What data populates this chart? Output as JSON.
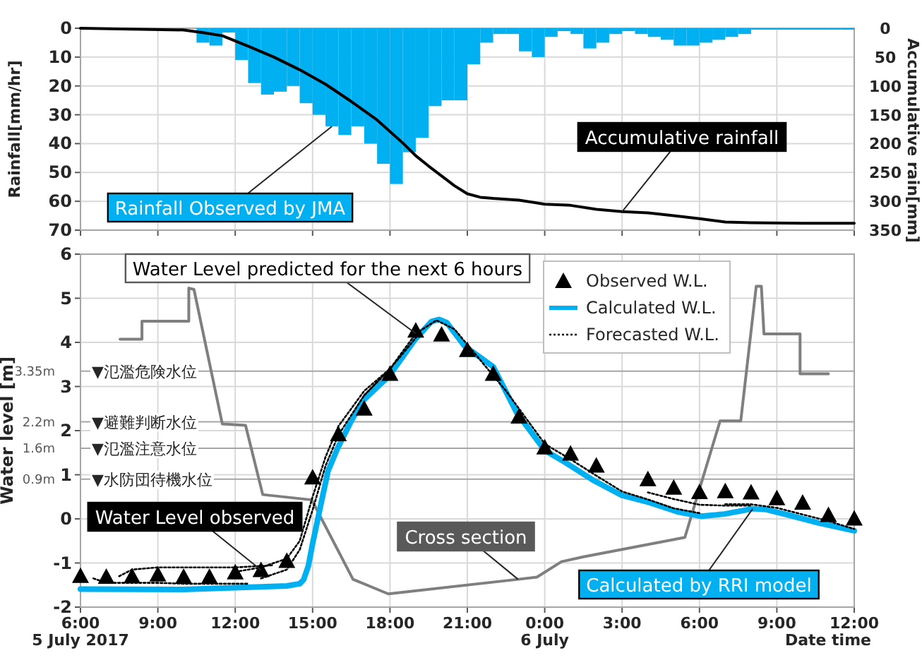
{
  "chart_data": [
    {
      "type": "bar",
      "xlim": [
        "2017-07-05T06:00",
        "2017-07-06T12:00"
      ],
      "xticks": [
        "2017-07-05T06:00",
        "2017-07-05T09:00",
        "2017-07-05T12:00",
        "2017-07-05T15:00",
        "2017-07-05T18:00",
        "2017-07-05T21:00",
        "2017-07-06T00:00",
        "2017-07-06T03:00",
        "2017-07-06T06:00",
        "2017-07-06T09:00",
        "2017-07-06T12:00"
      ],
      "ylim": [
        70,
        0
      ],
      "yticks": [
        0,
        10,
        20,
        30,
        40,
        50,
        60,
        70
      ],
      "y2lim": [
        350,
        0
      ],
      "y2ticks": [
        0,
        50,
        100,
        150,
        200,
        250,
        300,
        350
      ],
      "grid": true,
      "tick_labels": "y",
      "ylabel": "Rainfall[mm/hr]",
      "y2label": "Accumulative rain[mm]",
      "x": [
        "2017-07-05T10:45",
        "2017-07-05T11:15",
        "2017-07-05T11:45",
        "2017-07-05T12:15",
        "2017-07-05T12:45",
        "2017-07-05T13:15",
        "2017-07-05T13:45",
        "2017-07-05T14:15",
        "2017-07-05T14:45",
        "2017-07-05T15:15",
        "2017-07-05T15:45",
        "2017-07-05T16:15",
        "2017-07-05T16:45",
        "2017-07-05T17:15",
        "2017-07-05T17:45",
        "2017-07-05T18:15",
        "2017-07-05T18:45",
        "2017-07-05T19:15",
        "2017-07-05T19:45",
        "2017-07-05T20:15",
        "2017-07-05T20:45",
        "2017-07-05T21:15",
        "2017-07-05T21:45",
        "2017-07-05T22:15",
        "2017-07-05T22:45",
        "2017-07-05T23:15",
        "2017-07-05T23:45",
        "2017-07-06T00:15",
        "2017-07-06T00:45",
        "2017-07-06T01:15",
        "2017-07-06T01:45",
        "2017-07-06T02:15",
        "2017-07-06T02:45",
        "2017-07-06T03:15",
        "2017-07-06T03:45",
        "2017-07-06T04:15",
        "2017-07-06T04:45",
        "2017-07-06T05:15",
        "2017-07-06T05:45",
        "2017-07-06T06:15",
        "2017-07-06T06:45",
        "2017-07-06T07:15",
        "2017-07-06T07:45",
        "2017-07-06T08:15",
        "2017-07-06T08:45",
        "2017-07-06T09:15",
        "2017-07-06T09:45",
        "2017-07-06T10:15",
        "2017-07-06T10:45",
        "2017-07-06T11:15",
        "2017-07-06T11:45"
      ],
      "series": [
        {
          "color": "#00b0f0",
          "values": [
            5,
            6,
            1.5,
            11,
            19,
            23,
            22,
            20,
            26,
            30,
            34,
            37,
            34,
            40,
            47,
            54,
            43,
            38,
            27,
            25,
            25,
            12.5,
            5,
            2,
            2,
            8,
            10,
            3,
            1,
            2,
            7,
            5,
            2,
            1,
            2,
            3,
            4,
            6,
            6,
            5,
            4,
            3,
            2,
            0.5,
            0.5,
            0.5,
            0.5,
            0.5,
            0.5,
            0.5,
            0.5
          ]
        },
        {
          "type": "line",
          "axis": "y2",
          "color": "#000000",
          "x": [
            "2017-07-05T06:00",
            "2017-07-05T10:00",
            "2017-07-05T10:48",
            "2017-07-05T11:30",
            "2017-07-05T12:30",
            "2017-07-05T13:30",
            "2017-07-05T14:30",
            "2017-07-05T15:30",
            "2017-07-05T16:30",
            "2017-07-05T17:30",
            "2017-07-05T18:30",
            "2017-07-05T19:00",
            "2017-07-05T19:30",
            "2017-07-05T20:30",
            "2017-07-05T21:00",
            "2017-07-05T21:30",
            "2017-07-05T22:00",
            "2017-07-05T23:00",
            "2017-07-06T00:00",
            "2017-07-06T01:00",
            "2017-07-06T02:00",
            "2017-07-06T03:00",
            "2017-07-06T04:00",
            "2017-07-06T05:00",
            "2017-07-06T06:00",
            "2017-07-06T07:00",
            "2017-07-06T08:00",
            "2017-07-06T10:00",
            "2017-07-06T12:00"
          ],
          "values": [
            0,
            3,
            8,
            13,
            31,
            50,
            72,
            97,
            127,
            159,
            199,
            221,
            239,
            273,
            287,
            293,
            295,
            298,
            305,
            307,
            314,
            318,
            320,
            325,
            330,
            336,
            337,
            338,
            338
          ]
        }
      ],
      "annotations": [
        {
          "text": "Rainfall Observed by JMA",
          "x": "2017-07-05T15:45",
          "y": 34
        },
        {
          "text": "Accumulative rainfall",
          "x": "2017-07-06T03:00",
          "y": 63.6
        }
      ]
    },
    {
      "type": "line",
      "xlim": [
        "2017-07-05T06:00",
        "2017-07-06T12:00"
      ],
      "xticks": [
        {
          "value": "2017-07-05T06:00",
          "label": "6:00\n5 July 2017"
        },
        {
          "value": "2017-07-05T09:00",
          "label": "9:00"
        },
        {
          "value": "2017-07-05T12:00",
          "label": "12:00"
        },
        {
          "value": "2017-07-05T15:00",
          "label": "15:00"
        },
        {
          "value": "2017-07-05T18:00",
          "label": "18:00"
        },
        {
          "value": "2017-07-05T21:00",
          "label": "21:00"
        },
        {
          "value": "2017-07-06T00:00",
          "label": "0:00\n6 July"
        },
        {
          "value": "2017-07-06T03:00",
          "label": "3:00"
        },
        {
          "value": "2017-07-06T06:00",
          "label": "6:00"
        },
        {
          "value": "2017-07-06T09:00",
          "label": "9:00"
        },
        {
          "value": "2017-07-06T12:00",
          "label": "12:00"
        }
      ],
      "ylim": [
        -2,
        6
      ],
      "yticks": [
        -2,
        -1,
        0,
        1,
        2,
        3,
        4,
        5,
        6
      ],
      "grid": true,
      "legend": "top right",
      "xlabel": "Date time",
      "ylabel": "Water level [m]",
      "ref_lines": [
        {
          "axis": "y",
          "value": 3.35,
          "label": "▼氾濫危険水位"
        },
        {
          "axis": "y",
          "value": 2.2,
          "label": "▼避難判断水位"
        },
        {
          "axis": "y",
          "value": 1.6,
          "label": "▼氾濫注意水位"
        },
        {
          "axis": "y",
          "value": 0.9,
          "label": "▼水防団待機水位"
        }
      ],
      "series": [
        {
          "color": "#7f7f7f",
          "x": [
            "2017-07-05T07:32",
            "2017-07-05T08:23",
            "2017-07-05T08:23",
            "2017-07-05T10:12",
            "2017-07-05T10:12",
            "2017-07-05T10:24",
            "2017-07-05T11:30",
            "2017-07-05T12:24",
            "2017-07-05T13:04",
            "2017-07-05T14:58",
            "2017-07-05T16:34",
            "2017-07-05T17:56",
            "2017-07-05T22:58",
            "2017-07-05T23:42",
            "2017-07-06T00:39",
            "2017-07-06T01:30",
            "2017-07-06T05:26",
            "2017-07-06T06:48",
            "2017-07-06T07:36",
            "2017-07-06T08:12",
            "2017-07-06T08:24",
            "2017-07-06T08:30",
            "2017-07-06T09:54",
            "2017-07-06T09:54",
            "2017-07-06T11:00"
          ],
          "values": [
            4.07,
            4.07,
            4.48,
            4.48,
            5.23,
            5.2,
            2.15,
            2.12,
            0.55,
            0.43,
            -1.37,
            -1.7,
            -1.37,
            -1.32,
            -0.97,
            -0.86,
            -0.42,
            2.22,
            2.22,
            5.27,
            5.27,
            4.19,
            4.19,
            3.29,
            3.29
          ]
        },
        {
          "type": "scatter",
          "name": "Observed W.L.",
          "color": "#000000",
          "marker": "triangle",
          "x": [
            "2017-07-05T06:00",
            "2017-07-05T07:00",
            "2017-07-05T08:00",
            "2017-07-05T09:00",
            "2017-07-05T10:00",
            "2017-07-05T11:00",
            "2017-07-05T12:00",
            "2017-07-05T13:00",
            "2017-07-05T14:00",
            "2017-07-05T15:00",
            "2017-07-05T16:00",
            "2017-07-05T17:00",
            "2017-07-05T18:00",
            "2017-07-05T19:00",
            "2017-07-05T20:00",
            "2017-07-05T21:00",
            "2017-07-05T22:00",
            "2017-07-05T23:00",
            "2017-07-06T00:00",
            "2017-07-06T01:00",
            "2017-07-06T02:00",
            "2017-07-06T04:00",
            "2017-07-06T05:00",
            "2017-07-06T06:00",
            "2017-07-06T07:00",
            "2017-07-06T08:00",
            "2017-07-06T09:00",
            "2017-07-06T10:00",
            "2017-07-06T11:00",
            "2017-07-06T12:00"
          ],
          "values": [
            -1.29,
            -1.31,
            -1.3,
            -1.26,
            -1.31,
            -1.31,
            -1.21,
            -1.16,
            -0.95,
            0.94,
            1.92,
            2.5,
            3.29,
            4.27,
            4.18,
            3.83,
            3.29,
            2.32,
            1.62,
            1.48,
            1.21,
            0.9,
            0.71,
            0.61,
            0.63,
            0.6,
            0.47,
            0.37,
            0.09,
            0.01
          ]
        },
        {
          "name": "Calculated W.L.",
          "color": "#00b0f0",
          "x": [
            "2017-07-05T06:00",
            "2017-07-05T10:00",
            "2017-07-05T14:00",
            "2017-07-05T14:30",
            "2017-07-05T14:39",
            "2017-07-05T14:50",
            "2017-07-05T15:00",
            "2017-07-05T15:18",
            "2017-07-05T15:36",
            "2017-07-05T15:58",
            "2017-07-05T16:30",
            "2017-07-05T16:57",
            "2017-07-05T17:58",
            "2017-07-05T18:58",
            "2017-07-05T19:36",
            "2017-07-05T19:54",
            "2017-07-05T20:12",
            "2017-07-05T20:54",
            "2017-07-05T22:00",
            "2017-07-05T22:54",
            "2017-07-06T00:00",
            "2017-07-06T00:46",
            "2017-07-06T01:52",
            "2017-07-06T02:58",
            "2017-07-06T04:04",
            "2017-07-06T05:09",
            "2017-07-06T06:04",
            "2017-07-06T06:58",
            "2017-07-06T08:04",
            "2017-07-06T08:36",
            "2017-07-06T09:30",
            "2017-07-06T10:36",
            "2017-07-06T12:00"
          ],
          "values": [
            -1.59,
            -1.6,
            -1.52,
            -1.47,
            -1.38,
            -1.07,
            -0.56,
            0.27,
            1.09,
            1.6,
            2.22,
            2.68,
            3.24,
            4.06,
            4.47,
            4.52,
            4.45,
            3.91,
            3.45,
            2.42,
            1.55,
            1.29,
            0.88,
            0.54,
            0.37,
            0.16,
            0.06,
            0.11,
            0.23,
            0.21,
            0.08,
            -0.09,
            -0.27
          ]
        },
        {
          "name": "Forecasted W.L.",
          "color": "#000000",
          "line_style": "dotted",
          "x": [
            "2017-07-05T06:30",
            "2017-07-05T07:00",
            "2017-07-05T08:00",
            "2017-07-05T09:00",
            "2017-07-05T10:00",
            "2017-07-05T11:00",
            "2017-07-05T12:30"
          ],
          "values": [
            -1.35,
            -1.45,
            -1.45,
            -1.45,
            -1.47,
            -1.47,
            -1.47
          ]
        },
        {
          "color": "#000000",
          "line_style": "dotted",
          "x": [
            "2017-07-05T07:30",
            "2017-07-05T08:00",
            "2017-07-05T09:00",
            "2017-07-05T10:00",
            "2017-07-05T11:00",
            "2017-07-05T12:00",
            "2017-07-05T13:30"
          ],
          "values": [
            -1.3,
            -1.15,
            -1.1,
            -1.1,
            -1.1,
            -1.1,
            -1.05
          ]
        },
        {
          "color": "#000000",
          "line_style": "dotted",
          "x": [
            "2017-07-05T12:00",
            "2017-07-05T13:00",
            "2017-07-05T14:00",
            "2017-07-05T14:30",
            "2017-07-05T15:00",
            "2017-07-05T15:30",
            "2017-07-05T16:00",
            "2017-07-05T17:00",
            "2017-07-05T18:00"
          ],
          "values": [
            -1.2,
            -1.1,
            -0.9,
            -0.5,
            0.5,
            1.4,
            2.1,
            2.9,
            3.4
          ]
        },
        {
          "color": "#000000",
          "line_style": "dotted",
          "x": [
            "2017-07-05T13:00",
            "2017-07-05T14:00",
            "2017-07-05T14:30",
            "2017-07-05T15:00",
            "2017-07-05T15:30",
            "2017-07-05T16:00",
            "2017-07-05T17:00",
            "2017-07-05T18:00",
            "2017-07-05T19:00"
          ],
          "values": [
            -1.35,
            -1.15,
            -0.7,
            0.2,
            1.2,
            1.9,
            2.8,
            3.4,
            4.1
          ]
        },
        {
          "color": "#000000",
          "line_style": "dotted",
          "x": [
            "2017-07-05T17:00",
            "2017-07-05T18:00",
            "2017-07-05T19:00",
            "2017-07-05T19:48",
            "2017-07-05T20:30",
            "2017-07-05T21:30",
            "2017-07-05T22:30",
            "2017-07-06T00:00",
            "2017-07-06T01:00",
            "2017-07-06T02:00",
            "2017-07-06T03:00",
            "2017-07-06T04:00",
            "2017-07-06T05:00",
            "2017-07-06T06:00"
          ],
          "values": [
            2.8,
            3.4,
            4.2,
            4.5,
            4.3,
            3.6,
            2.9,
            1.7,
            1.35,
            0.98,
            0.62,
            0.44,
            0.24,
            0.13
          ]
        },
        {
          "color": "#000000",
          "line_style": "dotted",
          "x": [
            "2017-07-06T04:00",
            "2017-07-06T05:00",
            "2017-07-06T06:00",
            "2017-07-06T07:00",
            "2017-07-06T08:00"
          ],
          "values": [
            0.6,
            0.45,
            0.32,
            0.3,
            0.3
          ]
        },
        {
          "color": "#000000",
          "line_style": "dotted",
          "x": [
            "2017-07-06T07:00",
            "2017-07-06T08:00",
            "2017-07-06T09:00",
            "2017-07-06T10:00",
            "2017-07-06T11:00",
            "2017-07-06T12:00"
          ],
          "values": [
            0.33,
            0.33,
            0.25,
            0.1,
            -0.05,
            -0.23
          ]
        }
      ],
      "annotations": [
        {
          "text": "Water Level predicted for the next 6 hours",
          "x": "2017-07-05T19:00",
          "y": 4.2
        },
        {
          "text": "Water Level observed",
          "x": "2017-07-05T13:00",
          "y": -1.16
        },
        {
          "text": "Cross section",
          "x": "2017-07-05T22:58",
          "y": -1.37
        },
        {
          "text": "Calculated by RRI model",
          "x": "2017-07-06T08:04",
          "y": 0.23
        },
        {
          "text": "3.35m",
          "x": "2017-07-05T06:00",
          "y": 3.35
        },
        {
          "text": "2.2m",
          "x": "2017-07-05T06:00",
          "y": 2.2
        },
        {
          "text": "1.6m",
          "x": "2017-07-05T06:00",
          "y": 1.6
        },
        {
          "text": "0.9m",
          "x": "2017-07-05T06:00",
          "y": 0.9
        }
      ]
    }
  ]
}
